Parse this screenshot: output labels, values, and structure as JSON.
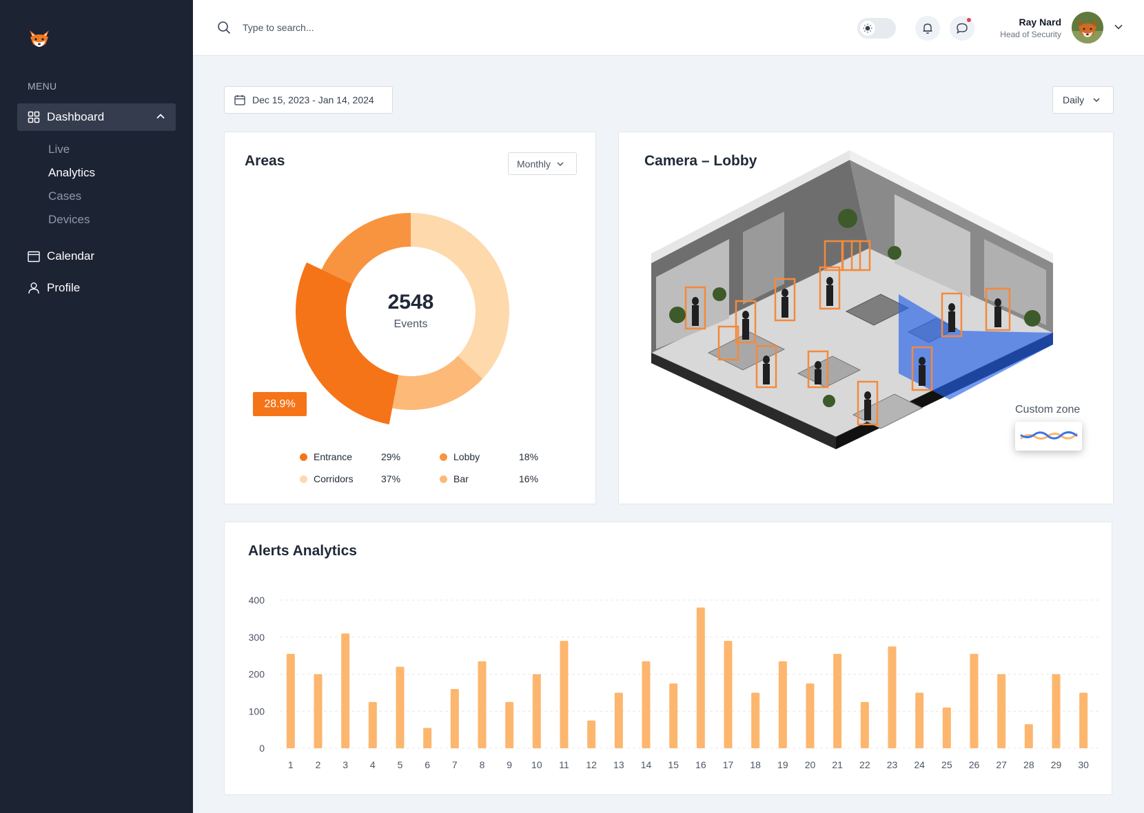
{
  "sidebar": {
    "menu_label": "MENU",
    "dashboard_label": "Dashboard",
    "sub_items": [
      {
        "label": "Live",
        "active": false
      },
      {
        "label": "Analytics",
        "active": true
      },
      {
        "label": "Cases",
        "active": false
      },
      {
        "label": "Devices",
        "active": false
      }
    ],
    "calendar_label": "Calendar",
    "profile_label": "Profile"
  },
  "header": {
    "search_placeholder": "Type to search...",
    "user_name": "Ray Nard",
    "user_role": "Head of Security"
  },
  "controls": {
    "date_range": "Dec 15, 2023 - Jan 14, 2024",
    "period": "Daily"
  },
  "areas": {
    "title": "Areas",
    "period": "Monthly",
    "total": "2548",
    "total_label": "Events",
    "highlight_pct": "28.9%",
    "legend": [
      {
        "name": "Entrance",
        "pct": "29%",
        "color": "#f57418"
      },
      {
        "name": "Lobby",
        "pct": "18%",
        "color": "#f8943f"
      },
      {
        "name": "Corridors",
        "pct": "37%",
        "color": "#fdd9ac"
      },
      {
        "name": "Bar",
        "pct": "16%",
        "color": "#fcb978"
      }
    ]
  },
  "camera": {
    "title": "Camera – Lobby",
    "zone_label": "Custom zone"
  },
  "alerts": {
    "title": "Alerts Analytics"
  },
  "chart_data": {
    "type": "bar",
    "title": "Alerts Analytics",
    "categories": [
      "1",
      "2",
      "3",
      "4",
      "5",
      "6",
      "7",
      "8",
      "9",
      "10",
      "11",
      "12",
      "13",
      "14",
      "15",
      "16",
      "17",
      "18",
      "19",
      "20",
      "21",
      "22",
      "23",
      "24",
      "25",
      "26",
      "27",
      "28",
      "29",
      "30"
    ],
    "values": [
      255,
      200,
      310,
      125,
      220,
      55,
      160,
      235,
      125,
      200,
      290,
      75,
      150,
      235,
      175,
      380,
      290,
      150,
      235,
      175,
      255,
      125,
      275,
      150,
      110,
      255,
      200,
      65,
      200,
      150
    ],
    "ylim": [
      0,
      400
    ],
    "yticks": [
      0,
      100,
      200,
      300,
      400
    ],
    "bar_color": "#fdb66e",
    "grid": true
  },
  "colors": {
    "sidebar_bg": "#1c2333",
    "accent": "#f57418",
    "zone_blue": "#2563eb"
  }
}
